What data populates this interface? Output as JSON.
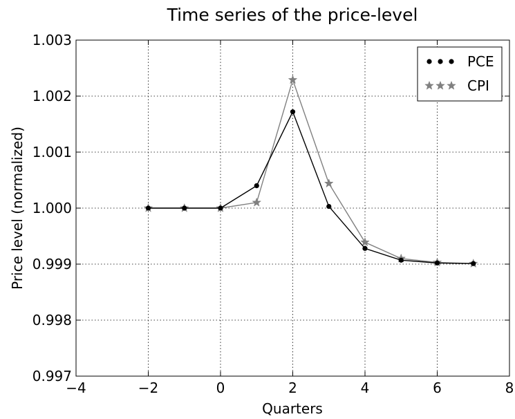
{
  "chart_data": {
    "type": "line",
    "title": "Time series of the price-level",
    "xlabel": "Quarters",
    "ylabel": "Price level (normalized)",
    "xlim": [
      -4,
      8
    ],
    "ylim": [
      0.997,
      1.003
    ],
    "xticks": [
      -4,
      -2,
      0,
      2,
      4,
      6,
      8
    ],
    "xtick_labels": [
      "−4",
      "−2",
      "0",
      "2",
      "4",
      "6",
      "8"
    ],
    "yticks": [
      0.997,
      0.998,
      0.999,
      1.0,
      1.001,
      1.002,
      1.003
    ],
    "ytick_labels": [
      "0.997",
      "0.998",
      "0.999",
      "1.000",
      "1.001",
      "1.002",
      "1.003"
    ],
    "grid": true,
    "legend_position": "top-right",
    "x": [
      -2,
      -1,
      0,
      1,
      2,
      3,
      4,
      5,
      6,
      7
    ],
    "series": [
      {
        "name": "PCE",
        "color": "#000000",
        "marker": "circle",
        "values": [
          1.0,
          1.0,
          1.0,
          1.0004,
          1.00172,
          1.00003,
          0.99928,
          0.99907,
          0.99902,
          0.99901
        ]
      },
      {
        "name": "CPI",
        "color": "#808080",
        "marker": "star",
        "values": [
          1.0,
          1.0,
          1.0,
          1.0001,
          1.00229,
          1.00044,
          0.99939,
          0.9991,
          0.99903,
          0.99901
        ]
      }
    ]
  }
}
